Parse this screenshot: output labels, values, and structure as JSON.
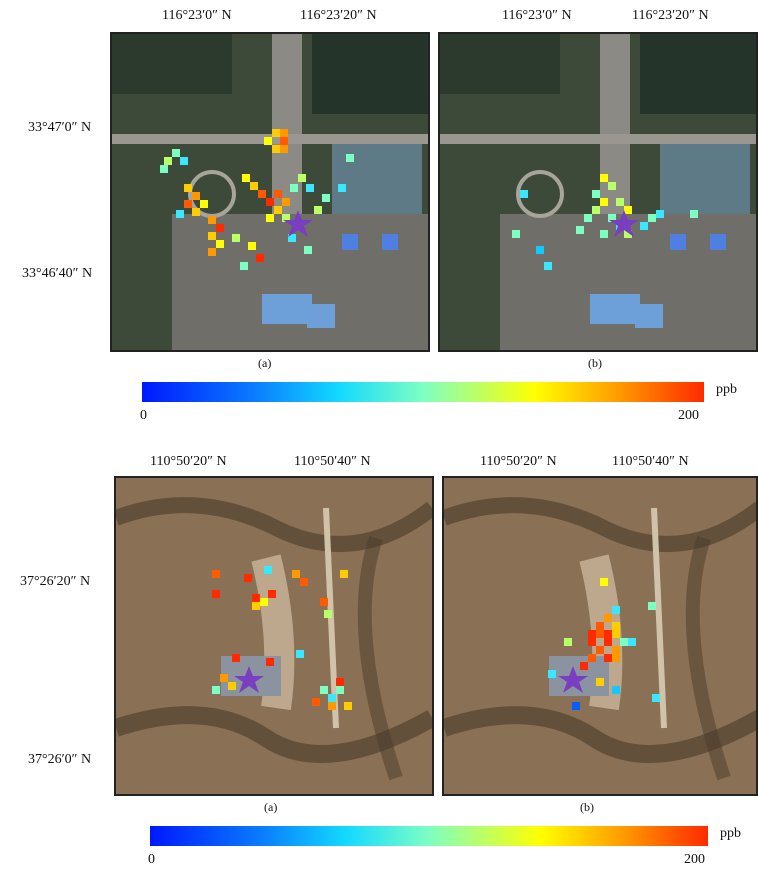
{
  "figure_top": {
    "lon_labels": [
      "116°23′0″ N",
      "116°23′20″ N"
    ],
    "lat_labels": [
      "33°47′0″ N",
      "33°46′40″ N"
    ],
    "subplot_labels": [
      "(a)",
      "(b)"
    ],
    "colorbar": {
      "min": "0",
      "max": "200",
      "unit": "ppb"
    }
  },
  "figure_bottom": {
    "lon_labels": [
      "110°50′20″ N",
      "110°50′40″ N"
    ],
    "lat_labels": [
      "37°26′20″ N",
      "37°26′0″ N"
    ],
    "subplot_labels": [
      "(a)",
      "(b)"
    ],
    "colorbar": {
      "min": "0",
      "max": "200",
      "unit": "ppb"
    }
  },
  "colors": {
    "star": "#7a3fc0",
    "scale_low": "#0018ff",
    "scale_high": "#ff2a00"
  }
}
